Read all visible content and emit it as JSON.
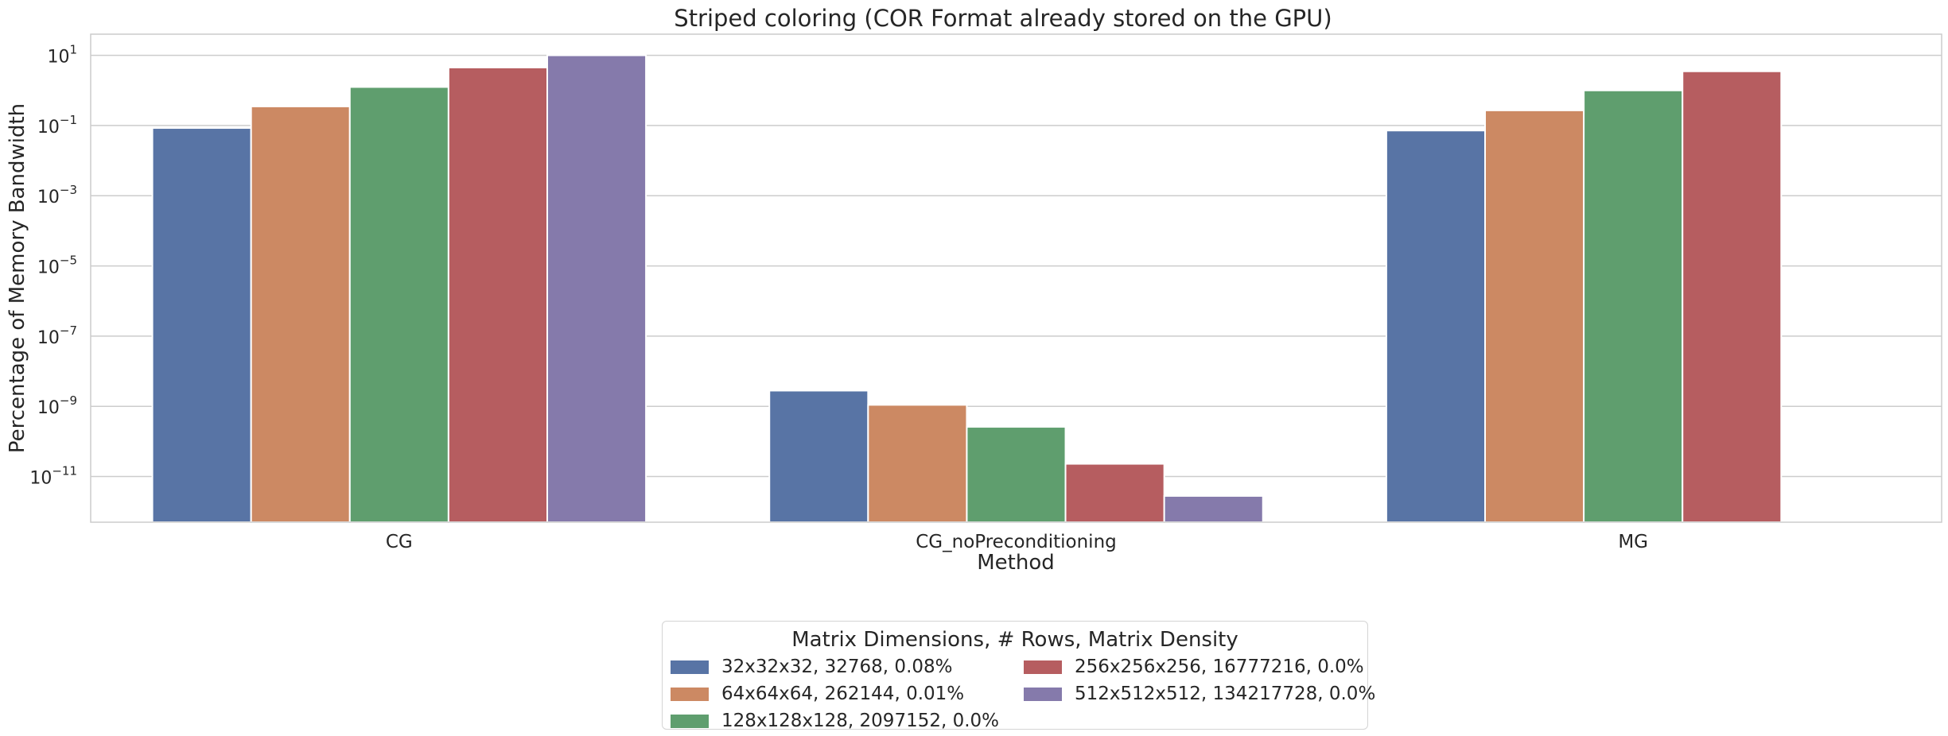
{
  "chart_data": {
    "type": "bar",
    "title": "Striped coloring (COR Format already stored on the GPU)",
    "xlabel": "Method",
    "ylabel": "Percentage of Memory Bandwidth",
    "yscale": "log",
    "ylim": [
      5e-13,
      40
    ],
    "yticks": [
      {
        "value": 10,
        "base": "10",
        "exp": "1"
      },
      {
        "value": 0.1,
        "base": "10",
        "exp": "−1"
      },
      {
        "value": 0.001,
        "base": "10",
        "exp": "−3"
      },
      {
        "value": 1e-05,
        "base": "10",
        "exp": "−5"
      },
      {
        "value": 1e-07,
        "base": "10",
        "exp": "−7"
      },
      {
        "value": 1e-09,
        "base": "10",
        "exp": "−9"
      },
      {
        "value": 1e-11,
        "base": "10",
        "exp": "−11"
      }
    ],
    "grid": "horizontal",
    "categories": [
      "CG",
      "CG_noPreconditioning",
      "MG"
    ],
    "legend_title": "Matrix Dimensions, # Rows, Matrix Density",
    "legend_position": "bottom-center",
    "series": [
      {
        "name": "32x32x32, 32768, 0.08%",
        "color": "#5874a5",
        "values": [
          0.085,
          2.8e-09,
          0.072
        ]
      },
      {
        "name": "64x64x64, 262144, 0.01%",
        "color": "#cc8963",
        "values": [
          0.35,
          1.1e-09,
          0.27
        ]
      },
      {
        "name": "128x128x128, 2097152, 0.0%",
        "color": "#5f9e6e",
        "values": [
          1.25,
          2.6e-10,
          1.0
        ]
      },
      {
        "name": "256x256x256, 16777216, 0.0%",
        "color": "#b65d60",
        "values": [
          4.5,
          2.3e-11,
          3.5
        ]
      },
      {
        "name": "512x512x512, 134217728, 0.0%",
        "color": "#857aab",
        "values": [
          10,
          2.8e-12,
          null
        ]
      }
    ]
  }
}
